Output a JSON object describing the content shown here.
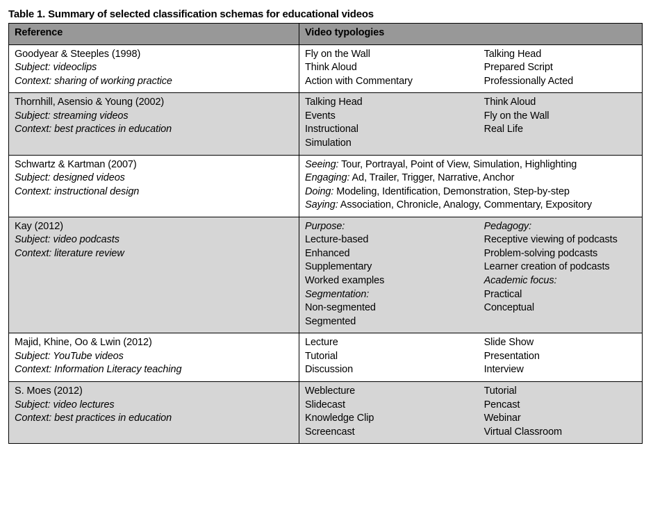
{
  "caption": "Table 1. Summary of selected classification schemas for educational videos",
  "headers": {
    "reference": "Reference",
    "typologies": "Video typologies"
  },
  "labels": {
    "subject": "Subject:",
    "context": "Context:"
  },
  "rows": [
    {
      "shade": false,
      "author": "Goodyear & Steeples (1998)",
      "subject": "videoclips",
      "context": "sharing of working practice",
      "layout": "twocol",
      "left": [
        "Fly on the Wall",
        "Think Aloud",
        "Action with Commentary"
      ],
      "right": [
        "Talking Head",
        "Prepared Script",
        "Professionally Acted"
      ]
    },
    {
      "shade": true,
      "author": "Thornhill, Asensio & Young (2002)",
      "subject": "streaming videos",
      "context": "best practices in education",
      "layout": "twocol",
      "left": [
        "Talking Head",
        "Events",
        "Instructional",
        "Simulation"
      ],
      "right": [
        "Think Aloud",
        "Fly on the Wall",
        "Real Life"
      ]
    },
    {
      "shade": false,
      "author": "Schwartz & Kartman (2007)",
      "subject": "designed videos",
      "context": "instructional design",
      "layout": "categorized-single",
      "cats": [
        {
          "k": "Seeing:",
          "v": " Tour, Portrayal, Point of View, Simulation, Highlighting"
        },
        {
          "k": "Engaging:",
          "v": " Ad, Trailer, Trigger, Narrative, Anchor"
        },
        {
          "k": "Doing:",
          "v": " Modeling, Identification, Demonstration, Step-by-step"
        },
        {
          "k": "Saying:",
          "v": " Association, Chronicle, Analogy, Commentary, Expository"
        }
      ]
    },
    {
      "shade": true,
      "author": "Kay (2012)",
      "subject": "video podcasts",
      "context": "literature review",
      "layout": "twocol-headed",
      "left": [
        {
          "heading": "Purpose:"
        },
        "Lecture-based",
        "Enhanced",
        "Supplementary",
        "Worked examples",
        {
          "heading": "Segmentation:"
        },
        "Non-segmented",
        "Segmented"
      ],
      "right": [
        {
          "heading": "Pedagogy:"
        },
        "Receptive viewing of podcasts",
        "Problem-solving podcasts",
        "Learner creation of podcasts",
        {
          "heading": "Academic focus:"
        },
        "Practical",
        "Conceptual"
      ]
    },
    {
      "shade": false,
      "author": "Majid, Khine, Oo & Lwin (2012)",
      "subject": "YouTube videos",
      "context": "Information Literacy teaching",
      "layout": "twocol",
      "left": [
        "Lecture",
        "Tutorial",
        "Discussion"
      ],
      "right": [
        "Slide Show",
        "Presentation",
        "Interview"
      ]
    },
    {
      "shade": true,
      "author": "S. Moes (2012)",
      "subject": "video lectures",
      "context": "best practices in education",
      "layout": "twocol",
      "left": [
        "Weblecture",
        "Slidecast",
        "Knowledge Clip",
        "Screencast"
      ],
      "right": [
        "Tutorial",
        "Pencast",
        "Webinar",
        "Virtual Classroom"
      ]
    }
  ]
}
